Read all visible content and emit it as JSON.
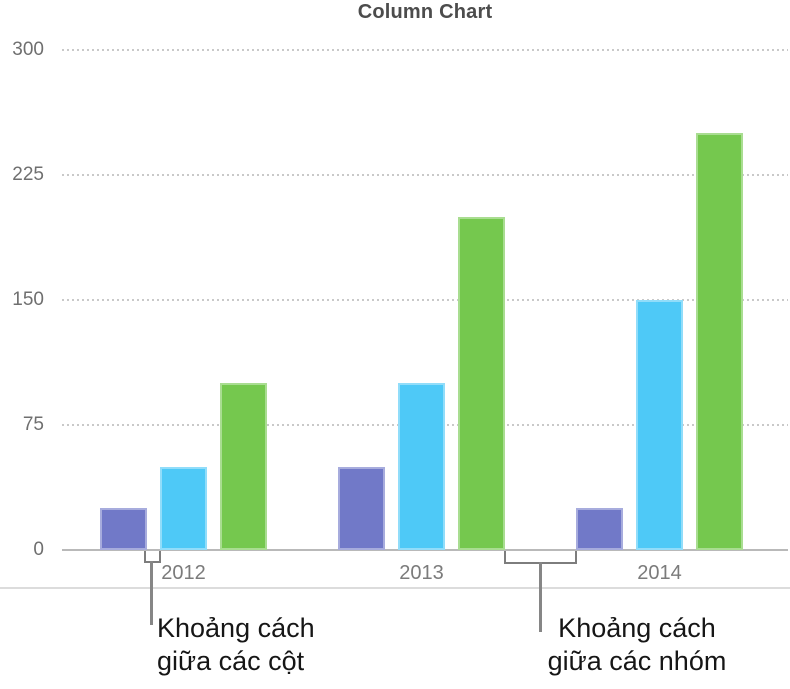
{
  "chart_data": {
    "type": "bar",
    "title": "Column Chart",
    "categories": [
      "2012",
      "2013",
      "2014"
    ],
    "series": [
      {
        "name": "purple-series",
        "color": "#7179c8",
        "values": [
          25,
          50,
          25
        ]
      },
      {
        "name": "blue-series",
        "color": "#4ec9f7",
        "values": [
          50,
          100,
          150
        ]
      },
      {
        "name": "green-series",
        "color": "#75c84e",
        "values": [
          100,
          200,
          250
        ]
      }
    ],
    "xlabel": "",
    "ylabel": "",
    "ylim": [
      0,
      300
    ],
    "yticks": [
      300,
      225,
      150,
      75,
      0
    ],
    "grid": "horizontal-dotted",
    "legend": "none"
  },
  "annotations": {
    "column_gap": {
      "lines": [
        "Khoảng cách",
        "giữa các cột"
      ]
    },
    "group_gap": {
      "lines": [
        "Khoảng cách",
        "giữa các nhóm"
      ]
    }
  }
}
